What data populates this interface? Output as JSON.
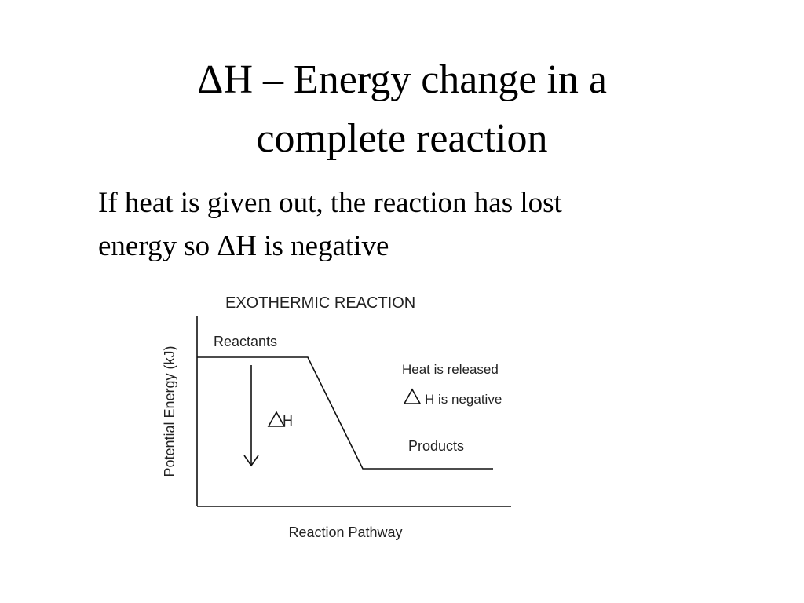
{
  "slide": {
    "title": [
      "ΔH – Energy change in a",
      "complete reaction"
    ],
    "body": [
      "If heat is given out, the reaction has lost",
      "energy so ΔH is negative"
    ],
    "diagram": {
      "title": "EXOTHERMIC REACTION",
      "y_axis_label": "Potential Energy (kJ)",
      "x_axis_label": "Reaction Pathway",
      "reactants": "Reactants",
      "products": "Products",
      "delta_label": "H",
      "note_1": "Heat is released",
      "note_2": "H is negative"
    }
  }
}
